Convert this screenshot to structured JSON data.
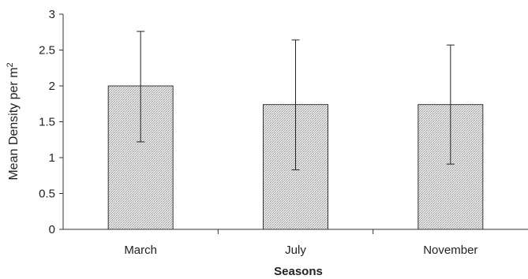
{
  "chart_data": {
    "type": "bar",
    "categories": [
      "March",
      "July",
      "November"
    ],
    "series": [
      {
        "values": [
          2.0,
          1.74,
          1.74
        ],
        "error_upper": [
          2.76,
          2.64,
          2.57
        ],
        "error_lower": [
          1.22,
          0.83,
          0.91
        ]
      }
    ],
    "xlabel": "Seasons",
    "ylabel_main": "Mean Density per m",
    "ylabel_sup": "2",
    "ylim": [
      0,
      3
    ],
    "yticks": [
      "0",
      "0.5",
      "1",
      "1.5",
      "2",
      "2.5",
      "3"
    ],
    "grid": false,
    "legend": "none",
    "bar_fill": "#d9d9d9",
    "bar_stroke": "#333333"
  }
}
